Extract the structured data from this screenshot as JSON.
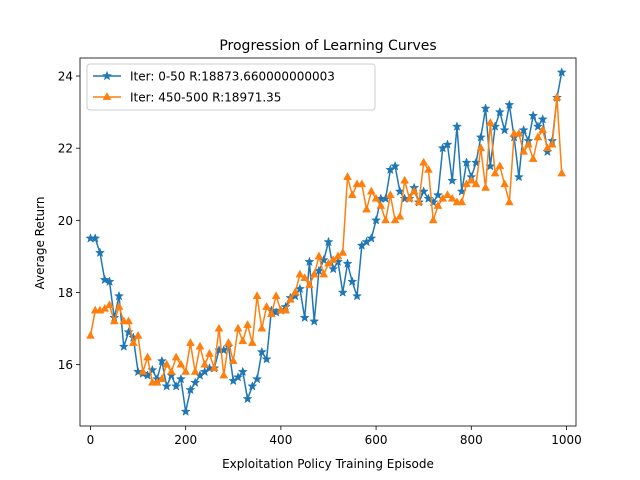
{
  "chart_data": {
    "type": "line",
    "title": "Progression of Learning Curves",
    "xlabel": "Exploitation Policy Training Episode",
    "ylabel": "Average Return",
    "xlim": [
      -22,
      1020
    ],
    "ylim": [
      14.3,
      24.5
    ],
    "xticks": [
      0,
      200,
      400,
      600,
      800,
      1000
    ],
    "yticks": [
      16,
      18,
      20,
      22,
      24
    ],
    "grid": false,
    "legend_position": "upper-left",
    "x": [
      0,
      10,
      20,
      30,
      40,
      50,
      60,
      70,
      80,
      90,
      100,
      110,
      120,
      130,
      140,
      150,
      160,
      170,
      180,
      190,
      200,
      210,
      220,
      230,
      240,
      250,
      260,
      270,
      280,
      290,
      300,
      310,
      320,
      330,
      340,
      350,
      360,
      370,
      380,
      390,
      400,
      410,
      420,
      430,
      440,
      450,
      460,
      470,
      480,
      490,
      500,
      510,
      520,
      530,
      540,
      550,
      560,
      570,
      580,
      590,
      600,
      610,
      620,
      630,
      640,
      650,
      660,
      670,
      680,
      690,
      700,
      710,
      720,
      730,
      740,
      750,
      760,
      770,
      780,
      790,
      800,
      810,
      820,
      830,
      840,
      850,
      860,
      870,
      880,
      890,
      900,
      910,
      920,
      930,
      940,
      950,
      960,
      970,
      980,
      990
    ],
    "series": [
      {
        "name": "Iter: 0-50 R:18873.660000000003",
        "color": "#1f77b4",
        "marker": "star",
        "values": [
          19.5,
          19.5,
          19.1,
          18.35,
          18.3,
          17.3,
          17.9,
          16.5,
          16.9,
          16.75,
          15.8,
          15.75,
          15.7,
          15.85,
          15.6,
          16.1,
          15.4,
          15.7,
          15.4,
          15.6,
          14.7,
          15.3,
          15.5,
          15.7,
          15.8,
          15.9,
          15.9,
          16.4,
          16.4,
          16.5,
          15.55,
          15.65,
          15.8,
          15.05,
          15.4,
          15.6,
          16.35,
          16.15,
          17.5,
          17.45,
          17.5,
          17.6,
          17.85,
          17.9,
          18.1,
          17.3,
          18.85,
          17.2,
          18.6,
          18.9,
          19.4,
          18.65,
          18.85,
          18.0,
          18.8,
          18.3,
          17.9,
          19.3,
          19.4,
          19.5,
          20.0,
          20.6,
          20.6,
          21.4,
          21.5,
          20.8,
          20.6,
          20.6,
          20.9,
          20.5,
          20.8,
          20.6,
          20.5,
          20.7,
          22.0,
          22.1,
          21.1,
          22.6,
          20.8,
          21.6,
          21.2,
          21.6,
          22.3,
          23.1,
          21.5,
          22.6,
          23.0,
          22.5,
          23.2,
          22.3,
          21.2,
          22.5,
          22.2,
          22.9,
          22.6,
          22.8,
          21.9,
          22.2,
          23.4,
          24.1
        ]
      },
      {
        "name": "Iter: 450-500 R:18971.35",
        "color": "#ff7f0e",
        "marker": "triangle",
        "values": [
          16.8,
          17.5,
          17.5,
          17.55,
          17.65,
          17.2,
          17.6,
          17.2,
          17.2,
          16.6,
          16.8,
          15.8,
          16.2,
          15.5,
          15.5,
          15.6,
          16.0,
          15.8,
          16.2,
          16.0,
          15.8,
          16.6,
          15.8,
          16.5,
          16.0,
          16.3,
          15.9,
          17.0,
          15.7,
          16.6,
          16.1,
          17.0,
          16.65,
          17.1,
          16.6,
          17.9,
          17.0,
          17.6,
          17.4,
          17.9,
          17.5,
          17.5,
          17.8,
          18.0,
          18.5,
          18.4,
          18.2,
          18.5,
          19.0,
          18.5,
          18.8,
          18.9,
          19.0,
          19.1,
          21.2,
          20.7,
          21.0,
          21.0,
          20.3,
          20.8,
          20.6,
          20.4,
          20.0,
          20.7,
          20.0,
          20.1,
          21.1,
          20.6,
          20.8,
          20.5,
          21.6,
          21.4,
          20.0,
          20.4,
          20.6,
          20.7,
          20.6,
          20.5,
          20.5,
          21.0,
          21.1,
          21.0,
          22.0,
          20.9,
          22.7,
          21.3,
          21.5,
          21.0,
          20.5,
          22.4,
          22.4,
          21.9,
          22.1,
          21.7,
          22.3,
          22.5,
          22.0,
          22.1,
          23.4,
          21.3
        ]
      }
    ]
  }
}
